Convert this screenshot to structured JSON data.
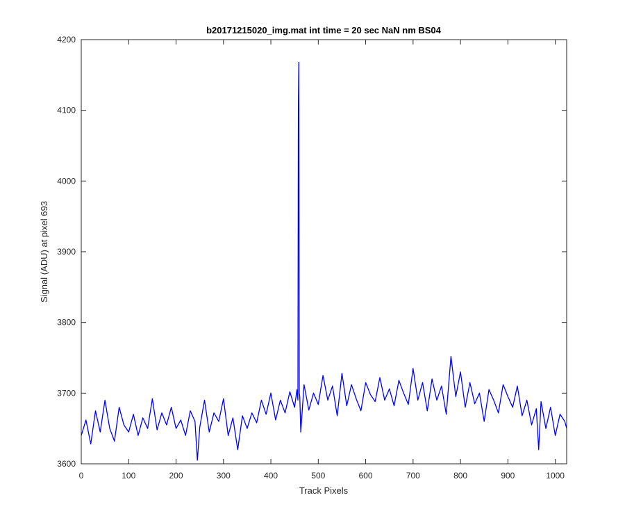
{
  "chart_data": {
    "type": "line",
    "title": "b20171215020_img.mat int time = 20 sec  NaN nm BS04",
    "xlabel": "Track Pixels",
    "ylabel": "Signal (ADU) at pixel 693",
    "xlim": [
      0,
      1024
    ],
    "ylim": [
      3600,
      4200
    ],
    "xticks": [
      0,
      100,
      200,
      300,
      400,
      500,
      600,
      700,
      800,
      900,
      1000
    ],
    "yticks": [
      3600,
      3700,
      3800,
      3900,
      4000,
      4100,
      4200
    ],
    "grid": false,
    "legend": "none",
    "colors": {
      "series": "#0000ff",
      "axes": "#262626"
    },
    "series": [
      {
        "x": [
          0,
          10,
          20,
          30,
          40,
          50,
          60,
          70,
          80,
          90,
          100,
          110,
          120,
          130,
          140,
          150,
          160,
          170,
          180,
          190,
          200,
          210,
          220,
          230,
          240,
          245,
          250,
          260,
          270,
          280,
          290,
          300,
          310,
          320,
          330,
          340,
          350,
          360,
          370,
          380,
          390,
          400,
          410,
          420,
          430,
          440,
          450,
          455,
          457,
          458,
          459,
          460,
          461,
          463,
          470,
          480,
          490,
          500,
          510,
          520,
          530,
          540,
          550,
          560,
          570,
          580,
          590,
          600,
          610,
          620,
          630,
          640,
          650,
          660,
          670,
          680,
          690,
          700,
          710,
          720,
          730,
          740,
          750,
          760,
          770,
          780,
          790,
          800,
          810,
          820,
          830,
          840,
          850,
          860,
          870,
          880,
          890,
          900,
          910,
          920,
          930,
          940,
          950,
          960,
          965,
          970,
          980,
          990,
          1000,
          1010,
          1020,
          1024
        ],
        "values": [
          3640,
          3662,
          3628,
          3675,
          3645,
          3690,
          3650,
          3632,
          3680,
          3655,
          3645,
          3670,
          3640,
          3665,
          3650,
          3692,
          3648,
          3672,
          3655,
          3680,
          3650,
          3662,
          3640,
          3675,
          3660,
          3605,
          3652,
          3690,
          3645,
          3672,
          3660,
          3692,
          3640,
          3665,
          3620,
          3668,
          3650,
          3672,
          3658,
          3690,
          3670,
          3700,
          3662,
          3690,
          3672,
          3702,
          3680,
          3705,
          3690,
          4100,
          4168,
          3700,
          3695,
          3645,
          3712,
          3676,
          3700,
          3684,
          3725,
          3690,
          3710,
          3668,
          3728,
          3682,
          3712,
          3692,
          3675,
          3715,
          3698,
          3688,
          3722,
          3690,
          3706,
          3682,
          3718,
          3700,
          3684,
          3735,
          3690,
          3715,
          3675,
          3720,
          3690,
          3710,
          3670,
          3752,
          3695,
          3730,
          3680,
          3715,
          3685,
          3700,
          3660,
          3705,
          3690,
          3672,
          3712,
          3695,
          3680,
          3710,
          3668,
          3690,
          3655,
          3678,
          3620,
          3688,
          3650,
          3680,
          3640,
          3670,
          3660,
          3650
        ]
      }
    ]
  }
}
